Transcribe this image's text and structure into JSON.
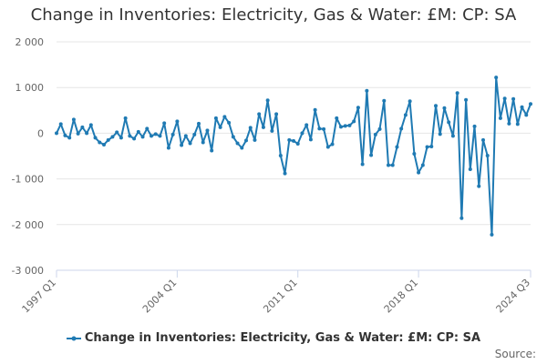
{
  "chart_data": {
    "type": "line",
    "title": "Change in Inventories: Electricity, Gas & Water: £M: CP: SA",
    "xlabel": "",
    "ylabel": "",
    "ylim": [
      -3000,
      2000
    ],
    "yticks": [
      2000,
      1000,
      0,
      -1000,
      -2000,
      -3000
    ],
    "ytick_labels": [
      "2 000",
      "1 000",
      "0",
      "-1 000",
      "-2 000",
      "-3 000"
    ],
    "xtick_labels": [
      {
        "label": "1997 Q1",
        "index": 0
      },
      {
        "label": "2004 Q1",
        "index": 28
      },
      {
        "label": "2011 Q1",
        "index": 56
      },
      {
        "label": "2018 Q1",
        "index": 84
      },
      {
        "label": "2024 Q3",
        "index": 110
      }
    ],
    "grid": true,
    "legend_position": "bottom",
    "series": [
      {
        "name": "Change in Inventories: Electricity, Gas & Water: £M: CP: SA",
        "color": "#1f7ab3",
        "start": "1997 Q1",
        "values": [
          0,
          200,
          -50,
          -100,
          300,
          -10,
          130,
          0,
          180,
          -100,
          -200,
          -250,
          -150,
          -80,
          20,
          -100,
          330,
          -60,
          -120,
          30,
          -80,
          100,
          -60,
          -20,
          -60,
          220,
          -320,
          -30,
          260,
          -260,
          -60,
          -220,
          -30,
          210,
          -200,
          60,
          -380,
          330,
          130,
          360,
          230,
          -80,
          -220,
          -320,
          -160,
          120,
          -150,
          420,
          130,
          720,
          50,
          420,
          -490,
          -880,
          -150,
          -170,
          -230,
          0,
          180,
          -140,
          510,
          100,
          90,
          -300,
          -240,
          330,
          140,
          160,
          170,
          260,
          560,
          -680,
          930,
          -480,
          -30,
          90,
          710,
          -700,
          -700,
          -300,
          100,
          400,
          700,
          -450,
          -860,
          -700,
          -300,
          -290,
          600,
          -20,
          550,
          240,
          -60,
          880,
          -1860,
          730,
          -790,
          150,
          -1160,
          -150,
          -490,
          -2220,
          1220,
          330,
          760,
          210,
          750,
          200,
          570,
          400,
          640
        ]
      }
    ]
  },
  "legend": {
    "label": "Change in Inventories: Electricity, Gas & Water: £M: CP: SA"
  },
  "footer": {
    "source_label": "Source:"
  }
}
